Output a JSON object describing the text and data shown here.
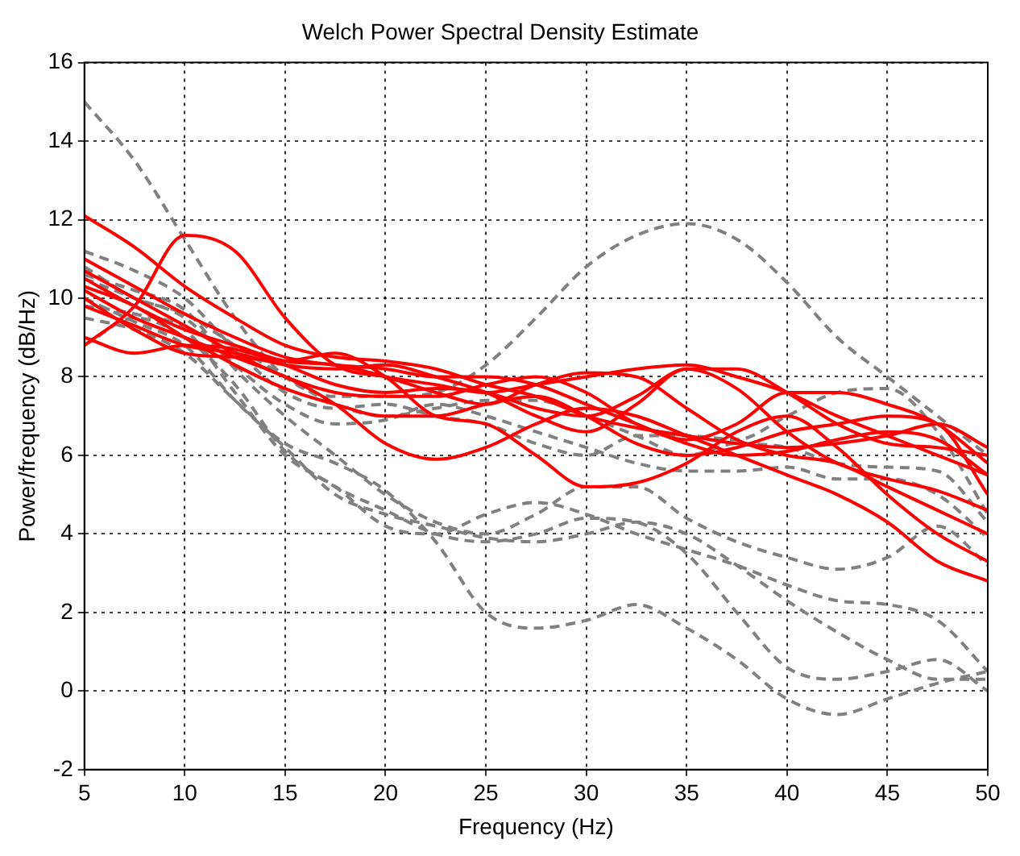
{
  "chart_data": {
    "type": "line",
    "title": "Welch Power Spectral Density Estimate",
    "xlabel": "Frequency (Hz)",
    "ylabel": "Power/frequency (dB/Hz)",
    "x": [
      5,
      7.5,
      10,
      12.5,
      15,
      17.5,
      20,
      22.5,
      25,
      27.5,
      30,
      32.5,
      35,
      37.5,
      40,
      42.5,
      45,
      47.5,
      50
    ],
    "xlim": [
      5,
      50
    ],
    "xticks": [
      5,
      10,
      15,
      20,
      25,
      30,
      35,
      40,
      45,
      50
    ],
    "ylim": [
      -2,
      16
    ],
    "yticks": [
      -2,
      0,
      2,
      4,
      6,
      8,
      10,
      12,
      14,
      16
    ],
    "grid": true,
    "legend": false,
    "marker": "none",
    "series": [
      {
        "color": "#ff0000",
        "line_style": "solid",
        "values": [
          8.8,
          9.8,
          11.6,
          11.2,
          9.5,
          8.3,
          8.0,
          7.8,
          7.6,
          7.8,
          8.0,
          8.2,
          8.3,
          8.0,
          7.6,
          7.0,
          6.5,
          6.0,
          5.5
        ]
      },
      {
        "color": "#ff0000",
        "line_style": "solid",
        "values": [
          12.1,
          11.3,
          10.3,
          9.5,
          8.8,
          8.5,
          8.4,
          8.2,
          7.8,
          7.5,
          7.0,
          6.7,
          6.5,
          6.3,
          6.2,
          6.3,
          6.5,
          6.8,
          6.2
        ]
      },
      {
        "color": "#ff0000",
        "line_style": "solid",
        "values": [
          11.0,
          10.3,
          9.6,
          9.0,
          8.5,
          8.3,
          8.2,
          8.0,
          8.0,
          7.8,
          7.3,
          6.8,
          6.3,
          6.0,
          6.1,
          6.4,
          6.6,
          6.4,
          5.5
        ]
      },
      {
        "color": "#ff0000",
        "line_style": "solid",
        "values": [
          10.5,
          9.8,
          9.2,
          8.8,
          8.4,
          8.3,
          8.0,
          7.6,
          7.3,
          7.8,
          8.1,
          8.0,
          7.2,
          6.4,
          6.0,
          5.8,
          5.2,
          4.6,
          4.0
        ]
      },
      {
        "color": "#ff0000",
        "line_style": "solid",
        "values": [
          10.2,
          9.5,
          9.0,
          8.5,
          8.0,
          7.3,
          6.3,
          5.9,
          6.2,
          6.8,
          7.2,
          7.0,
          6.5,
          6.0,
          5.5,
          5.0,
          4.3,
          3.3,
          2.8
        ]
      },
      {
        "color": "#ff0000",
        "line_style": "solid",
        "values": [
          9.8,
          9.3,
          8.8,
          8.6,
          8.3,
          8.2,
          8.3,
          8.0,
          7.6,
          7.0,
          6.6,
          7.3,
          8.2,
          7.7,
          6.6,
          5.8,
          5.4,
          5.1,
          4.6
        ]
      },
      {
        "color": "#ff0000",
        "line_style": "solid",
        "values": [
          10.0,
          9.2,
          8.6,
          8.5,
          8.4,
          8.6,
          8.0,
          7.0,
          6.8,
          6.0,
          5.2,
          5.3,
          5.8,
          6.6,
          7.0,
          6.2,
          5.0,
          4.0,
          3.3
        ]
      },
      {
        "color": "#ff0000",
        "line_style": "solid",
        "values": [
          10.7,
          10.0,
          9.3,
          8.6,
          8.0,
          7.6,
          7.5,
          7.5,
          7.8,
          8.0,
          7.6,
          6.8,
          6.4,
          6.8,
          7.6,
          7.6,
          7.3,
          6.8,
          5.8
        ]
      },
      {
        "color": "#ff0000",
        "line_style": "solid",
        "values": [
          9.0,
          8.6,
          8.8,
          8.7,
          8.3,
          7.8,
          7.6,
          7.7,
          7.6,
          7.2,
          7.0,
          7.5,
          8.2,
          8.2,
          7.6,
          6.8,
          6.3,
          6.2,
          6.0
        ]
      },
      {
        "color": "#ff0000",
        "line_style": "solid",
        "values": [
          10.3,
          9.8,
          9.0,
          8.3,
          7.7,
          7.3,
          7.0,
          7.0,
          7.3,
          7.5,
          7.0,
          6.3,
          6.0,
          6.2,
          6.6,
          6.8,
          7.0,
          6.8,
          5.0
        ]
      },
      {
        "color": "#808080",
        "line_style": "dashed",
        "values": [
          15.0,
          13.5,
          11.5,
          9.5,
          8.0,
          7.5,
          7.5,
          7.6,
          8.3,
          9.5,
          10.8,
          11.6,
          11.9,
          11.5,
          10.4,
          9.0,
          8.0,
          7.0,
          6.0
        ]
      },
      {
        "color": "#808080",
        "line_style": "dashed",
        "values": [
          11.2,
          10.7,
          10.0,
          8.7,
          7.6,
          7.2,
          7.3,
          7.0,
          6.8,
          6.3,
          6.0,
          6.5,
          6.5,
          6.4,
          7.0,
          7.6,
          7.7,
          6.6,
          4.5
        ]
      },
      {
        "color": "#808080",
        "line_style": "dashed",
        "values": [
          10.8,
          10.0,
          9.6,
          8.8,
          8.0,
          7.3,
          7.0,
          7.2,
          7.4,
          7.4,
          7.0,
          6.5,
          6.0,
          6.3,
          6.2,
          5.8,
          5.7,
          5.6,
          4.3
        ]
      },
      {
        "color": "#808080",
        "line_style": "dashed",
        "values": [
          10.5,
          10.0,
          9.5,
          8.3,
          7.3,
          6.8,
          6.9,
          7.3,
          7.0,
          6.6,
          6.2,
          5.8,
          5.6,
          5.6,
          5.7,
          5.4,
          5.4,
          5.0,
          3.9
        ]
      },
      {
        "color": "#808080",
        "line_style": "dashed",
        "values": [
          9.8,
          9.6,
          9.2,
          7.6,
          6.0,
          5.2,
          4.2,
          4.0,
          4.5,
          4.8,
          4.5,
          4.0,
          3.6,
          3.2,
          2.7,
          2.3,
          2.2,
          1.8,
          0.5
        ]
      },
      {
        "color": "#808080",
        "line_style": "dashed",
        "values": [
          10.0,
          9.4,
          8.8,
          7.4,
          6.2,
          5.0,
          4.5,
          4.2,
          3.9,
          3.8,
          4.0,
          4.3,
          4.0,
          3.2,
          2.3,
          1.5,
          0.8,
          0.3,
          0.3
        ]
      },
      {
        "color": "#808080",
        "line_style": "dashed",
        "values": [
          8.8,
          9.5,
          9.0,
          7.8,
          6.1,
          5.2,
          4.6,
          4.0,
          3.8,
          4.0,
          4.4,
          4.3,
          3.5,
          2.0,
          0.6,
          0.3,
          0.5,
          0.8,
          0.0
        ]
      },
      {
        "color": "#808080",
        "line_style": "dashed",
        "values": [
          9.5,
          9.2,
          8.6,
          7.4,
          6.3,
          5.8,
          5.1,
          3.8,
          2.0,
          1.6,
          1.8,
          2.2,
          1.6,
          0.8,
          -0.2,
          -0.6,
          -0.2,
          0.2,
          0.5
        ]
      },
      {
        "color": "#808080",
        "line_style": "dashed",
        "values": [
          10.6,
          10.2,
          9.7,
          8.2,
          7.0,
          6.0,
          5.0,
          4.3,
          4.0,
          4.5,
          5.2,
          5.2,
          4.4,
          3.8,
          3.4,
          3.1,
          3.4,
          4.2,
          3.2
        ]
      }
    ]
  }
}
